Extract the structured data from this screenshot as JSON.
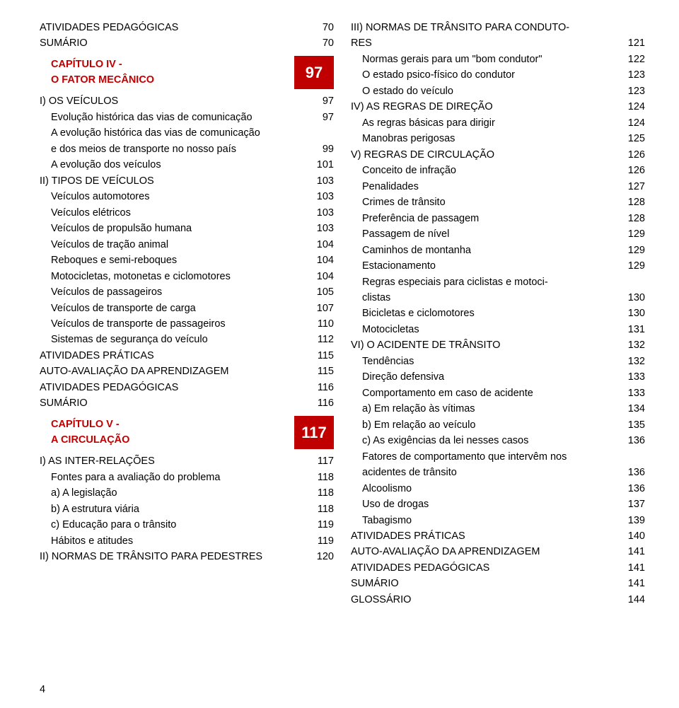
{
  "pageNumber": "4",
  "colors": {
    "accent": "#c00000",
    "text": "#000000",
    "bg": "#ffffff"
  },
  "left": [
    {
      "t": "row",
      "indent": 0,
      "label": "ATIVIDADES PEDAGÓGICAS",
      "page": "70"
    },
    {
      "t": "row",
      "indent": 0,
      "label": "SUMÁRIO",
      "page": "70"
    },
    {
      "t": "chapter",
      "line1": "CAPÍTULO  IV -",
      "line2": "O FATOR MECÂNICO",
      "num": "97"
    },
    {
      "t": "row",
      "indent": 0,
      "label": "I) OS VEÍCULOS",
      "page": "97"
    },
    {
      "t": "row",
      "indent": 1,
      "label": "Evolução histórica das vias de comunicação",
      "page": "97"
    },
    {
      "t": "row",
      "indent": 1,
      "label": "A evolução histórica das vias de comunicação",
      "page": ""
    },
    {
      "t": "row",
      "indent": 1,
      "label": "e dos meios de transporte no nosso país",
      "page": "99"
    },
    {
      "t": "row",
      "indent": 1,
      "label": "A evolução dos veículos",
      "page": "101"
    },
    {
      "t": "row",
      "indent": 0,
      "label": "II) TIPOS DE VEÍCULOS",
      "page": "103"
    },
    {
      "t": "row",
      "indent": 1,
      "label": "Veículos automotores",
      "page": "103"
    },
    {
      "t": "row",
      "indent": 1,
      "label": "Veículos elétricos",
      "page": "103"
    },
    {
      "t": "row",
      "indent": 1,
      "label": "Veículos de propulsão humana",
      "page": "103"
    },
    {
      "t": "row",
      "indent": 1,
      "label": "Veículos de tração animal",
      "page": "104"
    },
    {
      "t": "row",
      "indent": 1,
      "label": "Reboques e semi-reboques",
      "page": "104"
    },
    {
      "t": "row",
      "indent": 1,
      "label": "Motocicletas, motonetas e ciclomotores",
      "page": "104"
    },
    {
      "t": "row",
      "indent": 1,
      "label": "Veículos de passageiros",
      "page": "105"
    },
    {
      "t": "row",
      "indent": 1,
      "label": "Veículos de transporte de carga",
      "page": "107"
    },
    {
      "t": "row",
      "indent": 1,
      "label": "Veículos de transporte de passageiros",
      "page": "110"
    },
    {
      "t": "row",
      "indent": 1,
      "label": "Sistemas de segurança do veículo",
      "page": "112"
    },
    {
      "t": "row",
      "indent": 0,
      "label": "ATIVIDADES PRÁTICAS",
      "page": "115"
    },
    {
      "t": "row",
      "indent": 0,
      "label": "AUTO-AVALIAÇÃO DA APRENDIZAGEM",
      "page": "115"
    },
    {
      "t": "row",
      "indent": 0,
      "label": "ATIVIDADES PEDAGÓGICAS",
      "page": "116"
    },
    {
      "t": "row",
      "indent": 0,
      "label": "SUMÁRIO",
      "page": "116"
    },
    {
      "t": "chapter",
      "line1": "CAPÍTULO  V -",
      "line2": "A CIRCULAÇÃO",
      "num": "117"
    },
    {
      "t": "row",
      "indent": 0,
      "label": "I) AS INTER-RELAÇÕES",
      "page": "117"
    },
    {
      "t": "row",
      "indent": 1,
      "label": "Fontes para a avaliação do problema",
      "page": "118"
    },
    {
      "t": "row",
      "indent": 1,
      "label": "a) A legislação",
      "page": "118"
    },
    {
      "t": "row",
      "indent": 1,
      "label": "b) A estrutura viária",
      "page": "118"
    },
    {
      "t": "row",
      "indent": 1,
      "label": "c) Educação para o trânsito",
      "page": "119"
    },
    {
      "t": "row",
      "indent": 1,
      "label": "Hábitos e atitudes",
      "page": "119"
    },
    {
      "t": "row",
      "indent": 0,
      "label": "II) NORMAS DE TRÂNSITO PARA PEDESTRES",
      "page": "120"
    }
  ],
  "right": [
    {
      "t": "row",
      "indent": 0,
      "label": "III) NORMAS DE TRÂNSITO PARA CONDUTO-",
      "page": ""
    },
    {
      "t": "row",
      "indent": 0,
      "label": "RES",
      "page": "121"
    },
    {
      "t": "row",
      "indent": 1,
      "label": "Normas gerais para um \"bom condutor\"",
      "page": "122"
    },
    {
      "t": "row",
      "indent": 1,
      "label": "O estado psico-físico do condutor",
      "page": "123"
    },
    {
      "t": "row",
      "indent": 1,
      "label": "O estado do veículo",
      "page": "123"
    },
    {
      "t": "row",
      "indent": 0,
      "label": "IV) AS REGRAS DE DIREÇÃO",
      "page": "124"
    },
    {
      "t": "row",
      "indent": 1,
      "label": "As regras básicas para dirigir",
      "page": "124"
    },
    {
      "t": "row",
      "indent": 1,
      "label": "Manobras perigosas",
      "page": "125"
    },
    {
      "t": "row",
      "indent": 0,
      "label": "V) REGRAS DE CIRCULAÇÃO",
      "page": "126"
    },
    {
      "t": "row",
      "indent": 1,
      "label": "Conceito de infração",
      "page": "126"
    },
    {
      "t": "row",
      "indent": 1,
      "label": "Penalidades",
      "page": "127"
    },
    {
      "t": "row",
      "indent": 1,
      "label": "Crimes de trânsito",
      "page": "128"
    },
    {
      "t": "row",
      "indent": 1,
      "label": "Preferência de passagem",
      "page": "128"
    },
    {
      "t": "row",
      "indent": 1,
      "label": "Passagem de nível",
      "page": "129"
    },
    {
      "t": "row",
      "indent": 1,
      "label": "Caminhos de montanha",
      "page": "129"
    },
    {
      "t": "row",
      "indent": 1,
      "label": "Estacionamento",
      "page": "129"
    },
    {
      "t": "row",
      "indent": 1,
      "label": "Regras especiais para ciclistas e motoci-",
      "page": ""
    },
    {
      "t": "row",
      "indent": 1,
      "label": "clistas",
      "page": "130"
    },
    {
      "t": "row",
      "indent": 1,
      "label": "Bicicletas e ciclomotores",
      "page": "130"
    },
    {
      "t": "row",
      "indent": 1,
      "label": "Motocicletas",
      "page": "131"
    },
    {
      "t": "row",
      "indent": 0,
      "label": "VI) O ACIDENTE DE TRÂNSITO",
      "page": "132"
    },
    {
      "t": "row",
      "indent": 1,
      "label": "Tendências",
      "page": "132"
    },
    {
      "t": "row",
      "indent": 1,
      "label": "Direção defensiva",
      "page": "133"
    },
    {
      "t": "row",
      "indent": 1,
      "label": "Comportamento em caso de acidente",
      "page": "133"
    },
    {
      "t": "row",
      "indent": 1,
      "label": "a) Em relação às vítimas",
      "page": "134"
    },
    {
      "t": "row",
      "indent": 1,
      "label": "b) Em relação ao veículo",
      "page": "135"
    },
    {
      "t": "row",
      "indent": 1,
      "label": "c) As exigências da lei nesses casos",
      "page": "136"
    },
    {
      "t": "row",
      "indent": 1,
      "label": "Fatores de comportamento que intervêm nos",
      "page": ""
    },
    {
      "t": "row",
      "indent": 1,
      "label": "acidentes de trânsito",
      "page": "136"
    },
    {
      "t": "row",
      "indent": 1,
      "label": "Alcoolismo",
      "page": "136"
    },
    {
      "t": "row",
      "indent": 1,
      "label": "Uso de drogas",
      "page": "137"
    },
    {
      "t": "row",
      "indent": 1,
      "label": "Tabagismo",
      "page": "139"
    },
    {
      "t": "row",
      "indent": 0,
      "label": "ATIVIDADES PRÁTICAS",
      "page": "140"
    },
    {
      "t": "row",
      "indent": 0,
      "label": "AUTO-AVALIAÇÃO DA APRENDIZAGEM",
      "page": "141"
    },
    {
      "t": "row",
      "indent": 0,
      "label": "ATIVIDADES PEDAGÓGICAS",
      "page": "141"
    },
    {
      "t": "row",
      "indent": 0,
      "label": "SUMÁRIO",
      "page": "141"
    },
    {
      "t": "row",
      "indent": 0,
      "label": "GLOSSÁRIO",
      "page": "144"
    }
  ]
}
